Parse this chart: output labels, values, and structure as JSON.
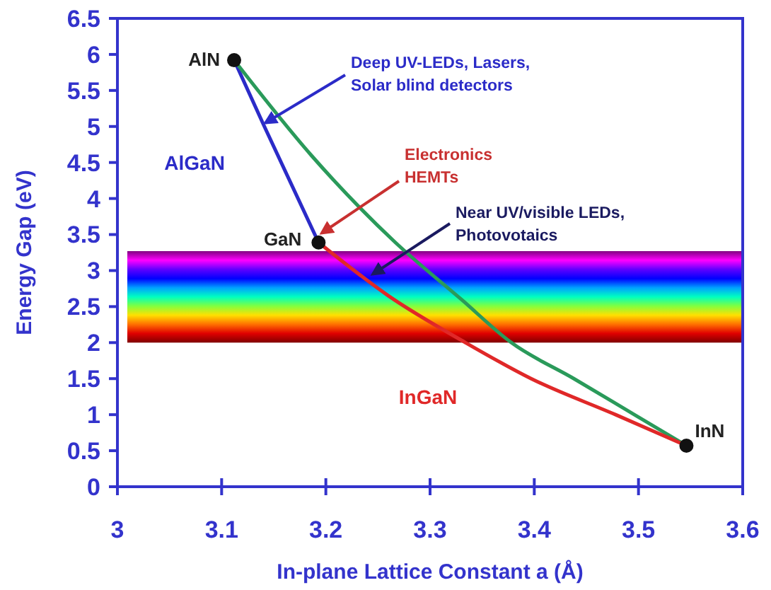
{
  "chart_data": {
    "type": "line",
    "xlabel": "In-plane Lattice Constant a (Å)",
    "ylabel": "Energy Gap (eV)",
    "xlim": [
      3,
      3.6
    ],
    "xticks": [
      3,
      3.1,
      3.2,
      3.3,
      3.4,
      3.5,
      3.6
    ],
    "ylim": [
      0,
      6.5
    ],
    "yticks": [
      0,
      0.5,
      1,
      1.5,
      2,
      2.5,
      3,
      3.5,
      4,
      4.5,
      5,
      5.5,
      6,
      6.5
    ],
    "grid": false,
    "marker": "none",
    "line_style": "solid",
    "bands": [
      {
        "axis": "y",
        "from": 2,
        "to": 3.27
      }
    ],
    "series": [
      {
        "name": "AlGaN",
        "color": "#2b2bc8",
        "x": [
          3.112,
          3.141,
          3.193
        ],
        "values": [
          5.92,
          5.0,
          3.39
        ]
      },
      {
        "color": "#2a9a5a",
        "x": [
          3.112,
          3.186,
          3.266,
          3.33,
          3.378,
          3.438,
          3.496,
          3.546
        ],
        "values": [
          5.92,
          4.6,
          3.4,
          2.6,
          2.0,
          1.5,
          1.0,
          0.57
        ]
      },
      {
        "name": "InGaN",
        "color": "#e02828",
        "x": [
          3.193,
          3.26,
          3.334,
          3.397,
          3.478,
          3.546
        ],
        "values": [
          3.39,
          2.65,
          2.0,
          1.5,
          1.0,
          0.57
        ]
      },
      {
        "type": "scatter",
        "marker": "circle",
        "color": "#111111",
        "x": [
          3.112,
          3.193,
          3.546
        ],
        "values": [
          5.92,
          3.39,
          0.57
        ]
      }
    ],
    "annotations": [
      {
        "text": "AlN",
        "x": 3.112,
        "y": 5.92
      },
      {
        "text": "GaN",
        "x": 3.193,
        "y": 3.39
      },
      {
        "text": "InN",
        "x": 3.546,
        "y": 0.57
      },
      {
        "text": "Deep UV-LEDs, Lasers,\nSolar blind detectors",
        "x": 3.142,
        "y": 5.05
      },
      {
        "text": "Electronics\nHEMTs",
        "x": 3.196,
        "y": 3.52
      },
      {
        "text": "Near UV/visible LEDs,\nPhotovotaics",
        "x": 3.245,
        "y": 2.95
      }
    ]
  }
}
